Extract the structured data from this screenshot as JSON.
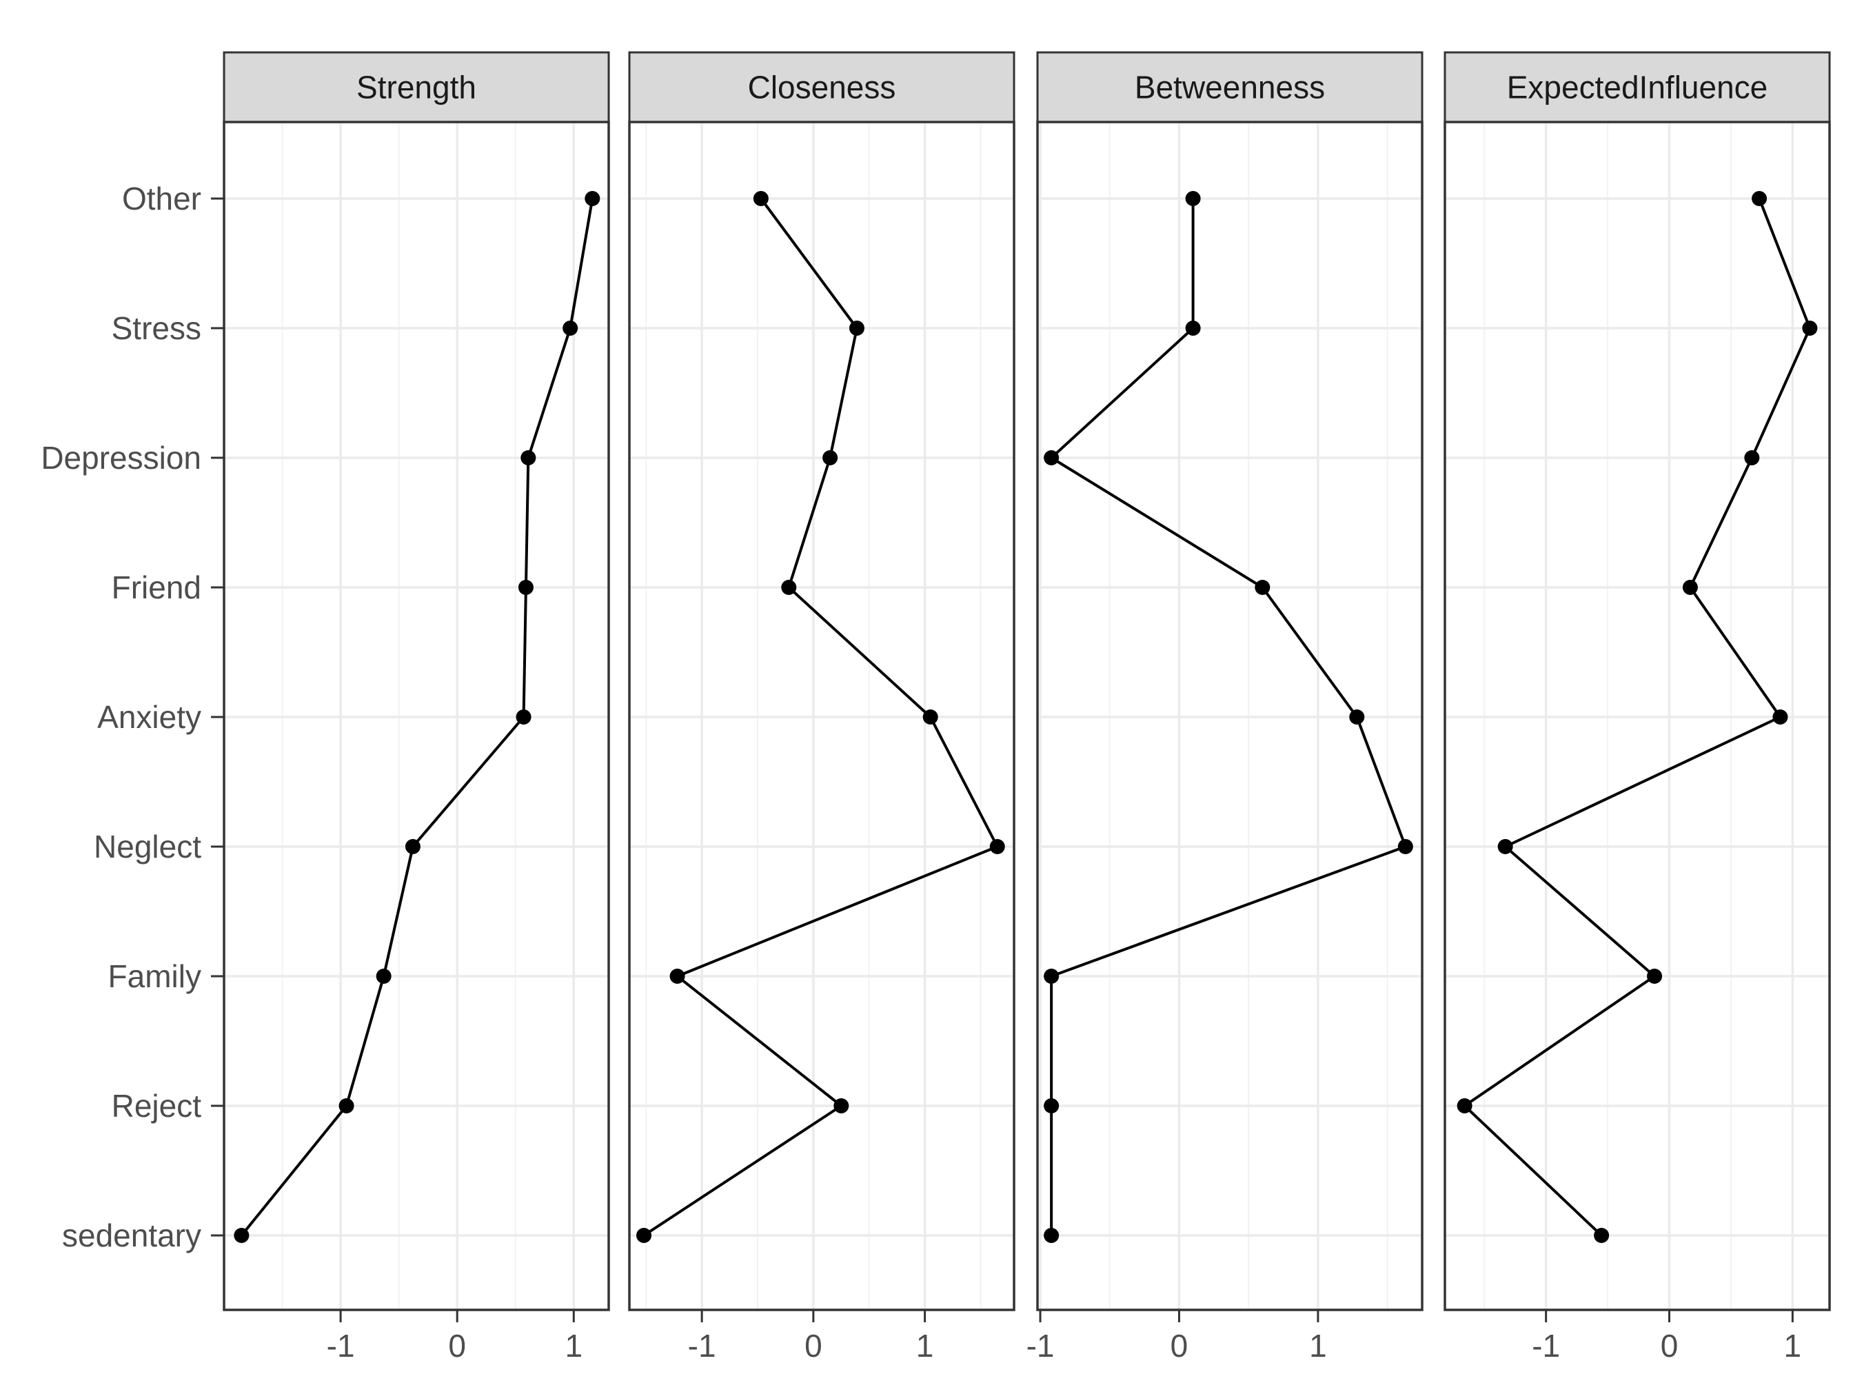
{
  "chart_data": {
    "type": "line",
    "title": "",
    "xlabel": "",
    "ylabel": "",
    "categories": [
      "sedentary",
      "Reject",
      "Family",
      "Neglect",
      "Anxiety",
      "Friend",
      "Depression",
      "Stress",
      "Other"
    ],
    "grid": true,
    "panels": [
      {
        "name": "Strength",
        "xlim": [
          -2.0,
          1.3
        ],
        "ticks": [
          -1,
          0,
          1
        ],
        "tick_labels": [
          "-1",
          "0",
          "1"
        ],
        "values": [
          -1.85,
          -0.95,
          -0.63,
          -0.38,
          0.57,
          0.59,
          0.61,
          0.97,
          1.16
        ]
      },
      {
        "name": "Closeness",
        "xlim": [
          -1.65,
          1.8
        ],
        "ticks": [
          -1,
          0,
          1
        ],
        "tick_labels": [
          "-1",
          "0",
          "1"
        ],
        "values": [
          -1.52,
          0.25,
          -1.22,
          1.65,
          1.05,
          -0.22,
          0.15,
          0.39,
          -0.47
        ]
      },
      {
        "name": "Betweenness",
        "xlim": [
          -1.02,
          1.75
        ],
        "ticks": [
          -1,
          0,
          1
        ],
        "tick_labels": [
          "-1",
          "0",
          "1"
        ],
        "values": [
          -0.92,
          -0.92,
          -0.92,
          1.63,
          1.28,
          0.6,
          -0.92,
          0.1,
          0.1
        ]
      },
      {
        "name": "ExpectedInfluence",
        "xlim": [
          -1.82,
          1.3
        ],
        "ticks": [
          -1,
          0,
          1
        ],
        "tick_labels": [
          "-1",
          "0",
          "1"
        ],
        "values": [
          -0.55,
          -1.66,
          -0.12,
          -1.33,
          0.9,
          0.17,
          0.67,
          1.14,
          0.73
        ]
      }
    ]
  }
}
